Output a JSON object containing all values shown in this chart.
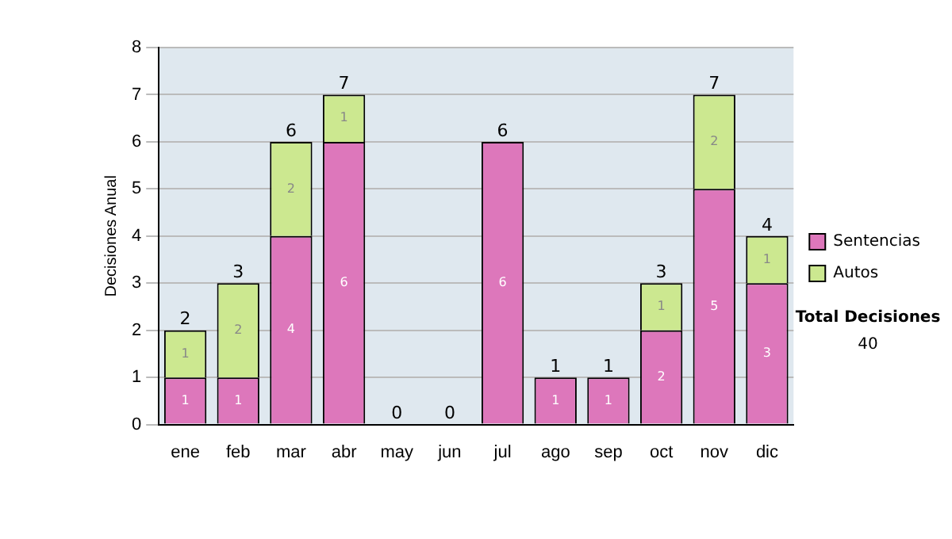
{
  "chart_data": {
    "type": "bar",
    "stacked": true,
    "ylabel": "Decisiones Anual",
    "categories": [
      "ene",
      "feb",
      "mar",
      "abr",
      "may",
      "jun",
      "jul",
      "ago",
      "sep",
      "oct",
      "nov",
      "dic"
    ],
    "series": [
      {
        "name": "Sentencias",
        "color": "#dd77bb",
        "values": [
          1,
          1,
          4,
          6,
          0,
          0,
          6,
          1,
          1,
          2,
          5,
          3
        ],
        "value_labels": [
          "1",
          "1",
          "4",
          "6",
          null,
          null,
          "6",
          "1",
          "1",
          "2",
          "5",
          "3"
        ]
      },
      {
        "name": "Autos",
        "color": "#cce890",
        "values": [
          1,
          2,
          2,
          1,
          0,
          0,
          0,
          0,
          0,
          1,
          2,
          1
        ],
        "value_labels": [
          "1",
          "2",
          "2",
          "1",
          null,
          null,
          null,
          null,
          null,
          "1",
          "2",
          "1"
        ]
      }
    ],
    "totals": [
      "2",
      "3",
      "6",
      "7",
      "0",
      "0",
      "6",
      "1",
      "1",
      "3",
      "7",
      "4"
    ],
    "ylim": [
      0,
      8
    ],
    "yticks": [
      0,
      1,
      2,
      3,
      4,
      5,
      6,
      7,
      8
    ],
    "grid": "y",
    "legend": "right",
    "annotations": [
      "Total Decisiones",
      "40"
    ]
  }
}
